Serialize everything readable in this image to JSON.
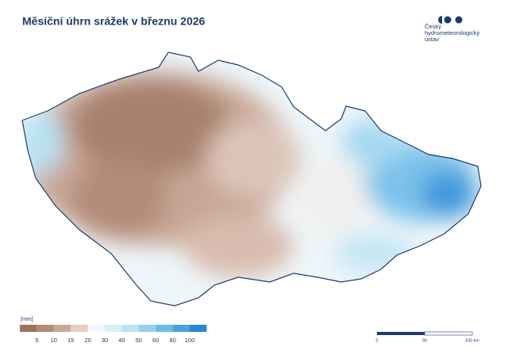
{
  "header": {
    "title": "Měsíční úhrn srážek v březnu 2026"
  },
  "logo": {
    "lines": [
      "Český",
      "hydrometeorologický",
      "ústav"
    ]
  },
  "legend": {
    "unit": "[mm]",
    "colors": [
      "#9b7260",
      "#b38b78",
      "#cba896",
      "#e3cfc4",
      "#f6f9fb",
      "#d9f0f8",
      "#b9e2f3",
      "#93d1ee",
      "#6cbce8",
      "#4aa3e0",
      "#2a85d5"
    ],
    "ticks": [
      5,
      10,
      15,
      20,
      30,
      40,
      50,
      60,
      80,
      100
    ]
  },
  "scale_bar": {
    "labels": [
      "0",
      "50",
      "100 km"
    ]
  }
}
